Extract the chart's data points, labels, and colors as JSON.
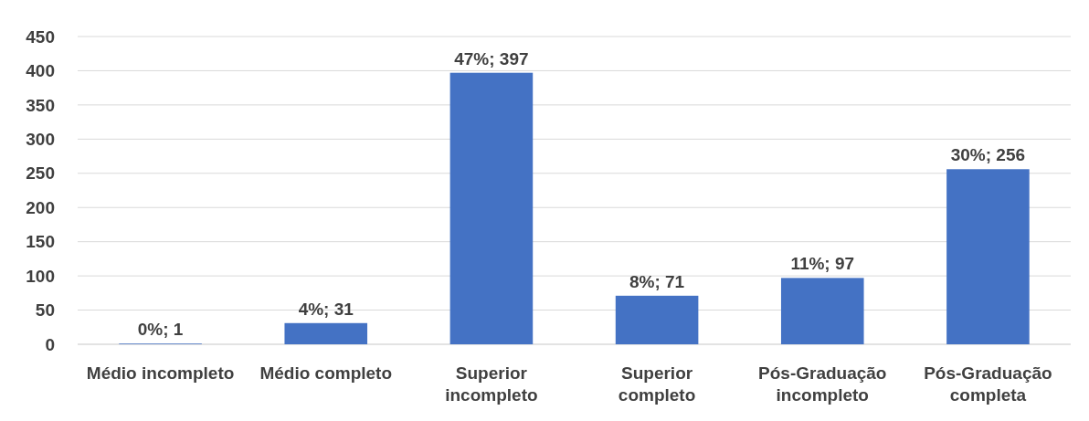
{
  "chart_data": {
    "type": "bar",
    "categories": [
      "Médio incompleto",
      "Médio completo",
      "Superior incompleto",
      "Superior completo",
      "Pós-Graduação incompleto",
      "Pós-Graduação completa"
    ],
    "values": [
      1,
      31,
      397,
      71,
      97,
      256
    ],
    "value_labels": [
      "0%; 1",
      "4%; 31",
      "47%; 397",
      "8%; 71",
      "11%; 97",
      "30%; 256"
    ],
    "color": "#4472c4",
    "ylim": [
      0,
      450
    ],
    "yticks": [
      0,
      50,
      100,
      150,
      200,
      250,
      300,
      350,
      400,
      450
    ],
    "grid": "y"
  }
}
